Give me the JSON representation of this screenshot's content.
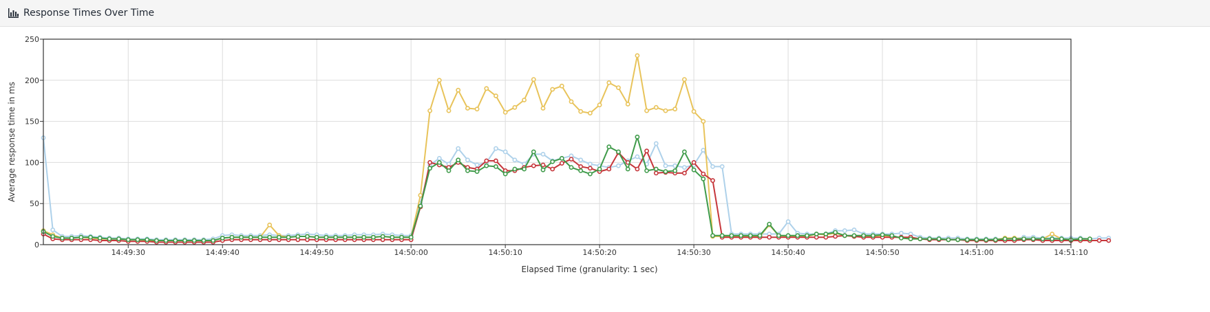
{
  "header": {
    "title": "Response Times Over Time",
    "icon": "bar-chart-icon"
  },
  "chart_data": {
    "type": "line",
    "xlabel": "Elapsed Time (granularity: 1 sec)",
    "ylabel": "Average response time in ms",
    "xlim": [
      "14:49:21",
      "14:51:10"
    ],
    "ylim": [
      0,
      250
    ],
    "yticks": [
      0,
      50,
      100,
      150,
      200,
      250
    ],
    "xticks": [
      "14:49:30",
      "14:49:40",
      "14:49:50",
      "14:50:00",
      "14:50:10",
      "14:50:20",
      "14:50:30",
      "14:50:40",
      "14:50:50",
      "14:51:00",
      "14:51:10"
    ],
    "grid": true,
    "legend": "none",
    "start_time": "14:49:21",
    "series": [
      {
        "color": "#aed1ea",
        "values": [
          130,
          18,
          10,
          10,
          11,
          10,
          9,
          8,
          8,
          7,
          7,
          7,
          6,
          6,
          6,
          6,
          6,
          6,
          7,
          11,
          12,
          11,
          11,
          11,
          12,
          11,
          11,
          12,
          13,
          12,
          11,
          11,
          11,
          12,
          12,
          12,
          13,
          12,
          11,
          11,
          50,
          97,
          105,
          98,
          117,
          103,
          97,
          100,
          117,
          113,
          103,
          98,
          110,
          110,
          102,
          105,
          108,
          103,
          98,
          96,
          94,
          96,
          102,
          107,
          98,
          123,
          96,
          96,
          94,
          97,
          115,
          95,
          95,
          13,
          13,
          13,
          13,
          13,
          13,
          28,
          14,
          13,
          13,
          13,
          17,
          17,
          18,
          13,
          13,
          13,
          13,
          14,
          13,
          9,
          8,
          8,
          8,
          8,
          7,
          7,
          7,
          7,
          7,
          7,
          9,
          9,
          8,
          8,
          8,
          8,
          8,
          7,
          8,
          8
        ]
      },
      {
        "color": "#e8c35a",
        "values": [
          17,
          12,
          8,
          8,
          9,
          8,
          7,
          7,
          7,
          6,
          6,
          5,
          5,
          5,
          5,
          5,
          5,
          5,
          5,
          8,
          9,
          9,
          9,
          9,
          24,
          11,
          9,
          10,
          10,
          9,
          9,
          9,
          9,
          9,
          9,
          9,
          10,
          9,
          9,
          9,
          60,
          163,
          200,
          163,
          188,
          166,
          165,
          190,
          181,
          161,
          167,
          176,
          201,
          166,
          189,
          193,
          174,
          162,
          160,
          170,
          197,
          191,
          171,
          230,
          163,
          167,
          163,
          165,
          201,
          162,
          150,
          10,
          10,
          10,
          10,
          10,
          10,
          24,
          11,
          10,
          10,
          10,
          13,
          12,
          14,
          11,
          10,
          10,
          10,
          11,
          10,
          8,
          7,
          7,
          7,
          7,
          6,
          6,
          6,
          6,
          6,
          6,
          8,
          8,
          7,
          7,
          7,
          13,
          7,
          6,
          7,
          7
        ]
      },
      {
        "color": "#c6363b",
        "values": [
          13,
          7,
          6,
          6,
          6,
          6,
          5,
          5,
          5,
          4,
          4,
          4,
          3,
          3,
          3,
          3,
          3,
          3,
          3,
          5,
          6,
          6,
          6,
          6,
          6,
          6,
          6,
          6,
          6,
          6,
          6,
          6,
          6,
          6,
          6,
          6,
          6,
          6,
          6,
          6,
          46,
          100,
          97,
          94,
          100,
          94,
          92,
          102,
          102,
          90,
          90,
          94,
          96,
          97,
          92,
          99,
          104,
          95,
          93,
          89,
          92,
          112,
          100,
          92,
          114,
          87,
          88,
          87,
          87,
          100,
          86,
          78,
          9,
          9,
          9,
          9,
          9,
          9,
          9,
          9,
          9,
          9,
          9,
          9,
          10,
          11,
          10,
          9,
          9,
          9,
          9,
          9,
          9,
          7,
          6,
          6,
          6,
          6,
          5,
          5,
          5,
          5,
          5,
          5,
          6,
          6,
          5,
          5,
          5,
          5,
          5,
          5,
          5,
          5
        ]
      },
      {
        "color": "#3f9b4a",
        "values": [
          16,
          10,
          8,
          8,
          9,
          9,
          8,
          7,
          7,
          6,
          6,
          6,
          5,
          5,
          5,
          5,
          5,
          5,
          5,
          8,
          9,
          9,
          9,
          9,
          9,
          9,
          9,
          10,
          10,
          9,
          9,
          9,
          9,
          9,
          9,
          9,
          10,
          9,
          9,
          9,
          47,
          93,
          100,
          90,
          103,
          90,
          89,
          96,
          95,
          86,
          92,
          92,
          113,
          91,
          101,
          105,
          94,
          90,
          86,
          92,
          119,
          113,
          92,
          131,
          90,
          92,
          89,
          90,
          113,
          91,
          80,
          11,
          11,
          11,
          11,
          11,
          11,
          25,
          11,
          11,
          11,
          11,
          13,
          13,
          15,
          11,
          11,
          11,
          11,
          12,
          11,
          8,
          7,
          7,
          7,
          7,
          6,
          6,
          6,
          6,
          6,
          6,
          7,
          7,
          7,
          7,
          7,
          7,
          7,
          6,
          7,
          7
        ]
      }
    ]
  }
}
